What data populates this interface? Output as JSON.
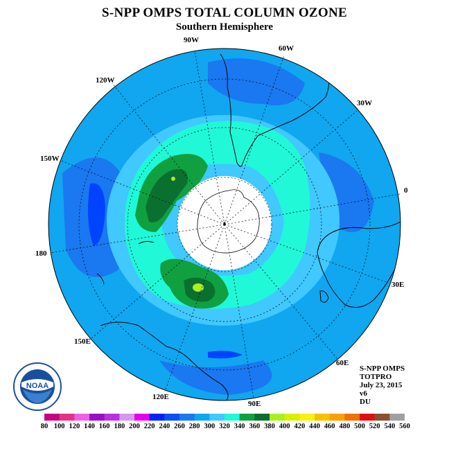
{
  "header": {
    "title": "S-NPP OMPS TOTAL COLUMN OZONE",
    "subtitle": "Southern Hemisphere"
  },
  "longitude_labels": [
    "90W",
    "60W",
    "30W",
    "0",
    "30E",
    "60E",
    "90E",
    "120E",
    "150E",
    "180",
    "150W",
    "120W"
  ],
  "info": {
    "instrument": "S-NPP OMPS",
    "product": "TOTPRO",
    "date": "July 23, 2015",
    "version": "v6",
    "units": "DU"
  },
  "logo": {
    "text": "NOAA",
    "icon": "noaa-logo"
  },
  "colorbar": {
    "labels": [
      "80",
      "100",
      "120",
      "140",
      "160",
      "180",
      "200",
      "220",
      "240",
      "260",
      "280",
      "300",
      "320",
      "340",
      "360",
      "380",
      "400",
      "420",
      "440",
      "460",
      "480",
      "500",
      "520",
      "540",
      "560"
    ],
    "colors": [
      "#c8007f",
      "#e8308a",
      "#ee60e0",
      "#9a10c8",
      "#b830e0",
      "#d896ee",
      "#e800e8",
      "#0020ff",
      "#0a4ff5",
      "#1a78f0",
      "#10a6f0",
      "#40c8ff",
      "#20f8d8",
      "#10a040",
      "#0a7030",
      "#a8f020",
      "#d8f000",
      "#f8f010",
      "#f8c000",
      "#f8a000",
      "#f07000",
      "#e01010",
      "#8a5030",
      "#a0a0a0",
      "#707070"
    ]
  },
  "map_colors": {
    "ocean_deep": "#0044ff",
    "c260": "#1a78f0",
    "c280": "#10a6f0",
    "c300": "#40c8ff",
    "c320": "#20f8d8",
    "c340": "#10a040",
    "c360": "#0a7030",
    "c380": "#a8f020",
    "pole_hole": "#ffffff"
  }
}
